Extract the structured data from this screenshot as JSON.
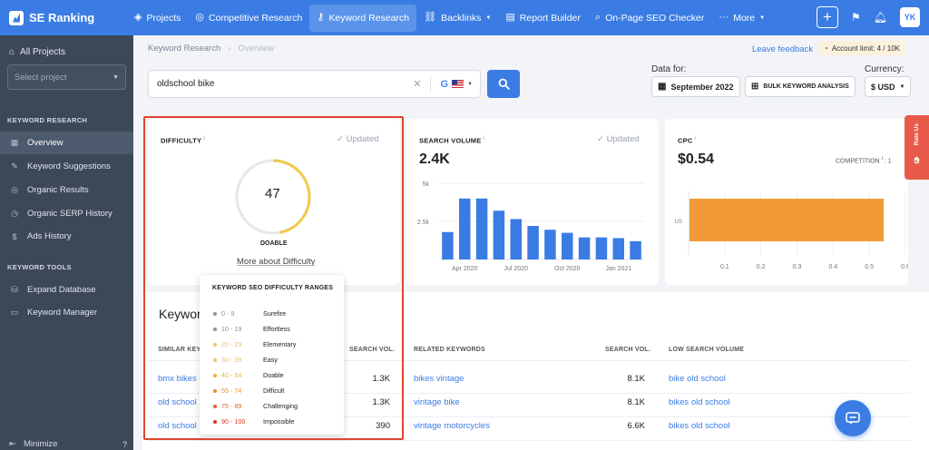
{
  "header": {
    "brand": "SE Ranking",
    "nav": [
      {
        "label": "Projects",
        "icon": "layers-icon"
      },
      {
        "label": "Competitive Research",
        "icon": "target-icon"
      },
      {
        "label": "Keyword Research",
        "icon": "key-icon",
        "active": true
      },
      {
        "label": "Backlinks",
        "icon": "link-icon",
        "dropdown": true
      },
      {
        "label": "Report Builder",
        "icon": "report-icon"
      },
      {
        "label": "On-Page SEO Checker",
        "icon": "search-check-icon"
      },
      {
        "label": "More",
        "icon": "dots-icon",
        "dropdown": true
      }
    ],
    "user_initials": "YK"
  },
  "sidebar": {
    "all_projects": "All Projects",
    "select_placeholder": "Select project",
    "section_research": "KEYWORD RESEARCH",
    "items": [
      {
        "label": "Overview",
        "icon": "grid-icon",
        "active": true
      },
      {
        "label": "Keyword Suggestions",
        "icon": "pen-icon"
      },
      {
        "label": "Organic Results",
        "icon": "target-icon"
      },
      {
        "label": "Organic SERP History",
        "icon": "history-icon"
      },
      {
        "label": "Ads History",
        "icon": "dollar-icon"
      }
    ],
    "section_tools": "KEYWORD TOOLS",
    "tools": [
      {
        "label": "Expand Database",
        "icon": "database-icon"
      },
      {
        "label": "Keyword Manager",
        "icon": "bookmark-icon"
      }
    ],
    "minimize": "Minimize"
  },
  "breadcrumb": {
    "parent": "Keyword Research",
    "current": "Overview"
  },
  "leave_feedback": "Leave feedback",
  "account_limit": "Account limit: 4 / 10K",
  "search": {
    "value": "oldschool bike"
  },
  "data_for": {
    "label": "Data for:",
    "value": "September 2022"
  },
  "bulk_button": "BULK KEYWORD ANALYSIS",
  "currency": {
    "label": "Currency:",
    "value": "$ USD"
  },
  "difficulty": {
    "title": "DIFFICULTY",
    "updated": "Updated",
    "value": "47",
    "level": "DOABLE",
    "more": "More about Difficulty"
  },
  "volume": {
    "title": "SEARCH VOLUME",
    "updated": "Updated",
    "value": "2.4K"
  },
  "cpc": {
    "title": "CPC",
    "value": "$0.54",
    "competition": "COMPETITION",
    "competition_value": "1"
  },
  "popup": {
    "title": "KEYWORD SEO DIFFICULTY RANGES",
    "ranges": [
      {
        "range": "0 - 9",
        "name": "Surefire",
        "color": "#8a919c"
      },
      {
        "range": "10 - 19",
        "name": "Effortless",
        "color": "#8a919c"
      },
      {
        "range": "20 - 29",
        "name": "Elementary",
        "color": "#e9c46a"
      },
      {
        "range": "30 - 39",
        "name": "Easy",
        "color": "#e9c46a"
      },
      {
        "range": "40 - 54",
        "name": "Doable",
        "color": "#f0b429"
      },
      {
        "range": "55 - 74",
        "name": "Difficult",
        "color": "#f08c2a"
      },
      {
        "range": "75 - 89",
        "name": "Challenging",
        "color": "#e8622a"
      },
      {
        "range": "90 - 100",
        "name": "Impossible",
        "color": "#d9361f"
      }
    ]
  },
  "keywords": {
    "title": "Keywor",
    "similar_header": "SIMILAR KEYW",
    "similar_vol_header": "SEARCH VOL.",
    "related_header": "RELATED KEYWORDS",
    "related_vol_header": "SEARCH VOL.",
    "low_header": "LOW SEARCH VOLUME",
    "rows": [
      {
        "similar": "bmx bikes o",
        "similar_vol": "1.3K",
        "related": "bikes vintage",
        "related_vol": "8.1K",
        "low": "bike old school"
      },
      {
        "similar": "old school b",
        "similar_vol": "1.3K",
        "related": "vintage bike",
        "related_vol": "8.1K",
        "low": "bikes old school"
      },
      {
        "similar": "old school b",
        "similar_vol": "390",
        "related": "vintage motorcycles",
        "related_vol": "6.6K",
        "low": "bikes old school"
      }
    ]
  },
  "rate_us": "Rate Us",
  "colors": {
    "brand": "#3a7ce3",
    "sidebar": "#3c4758",
    "bar": "#3a7ce3",
    "cpc_bar": "#f29a38",
    "gauge": "#f2c94c",
    "highlight": "#e0452f"
  },
  "chart_data": [
    {
      "type": "bar",
      "title": "SEARCH VOLUME",
      "yticks": [
        "5k",
        "2.5k"
      ],
      "ylim": [
        0,
        5000
      ],
      "xticks": [
        "Apr 2020",
        "Jul 2020",
        "Oct 2020",
        "Jan 2021"
      ],
      "values": [
        1800,
        4000,
        4000,
        3200,
        2650,
        2200,
        1950,
        1750,
        1450,
        1450,
        1400,
        1200
      ],
      "grid": true
    },
    {
      "type": "bar",
      "orientation": "horizontal",
      "title": "CPC",
      "categories": [
        "US"
      ],
      "values": [
        0.54
      ],
      "xticks": [
        "0.1",
        "0.2",
        "0.3",
        "0.4",
        "0.5",
        "0.6"
      ],
      "xlim": [
        0,
        0.6
      ]
    }
  ]
}
